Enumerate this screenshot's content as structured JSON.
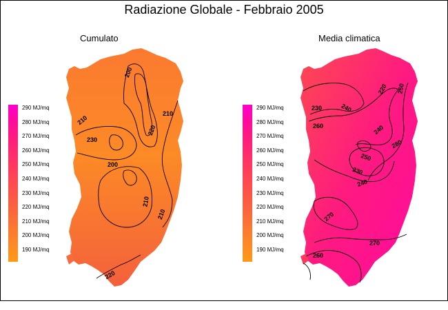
{
  "title": "Radiazione Globale - Febbraio 2005",
  "panels": {
    "left": {
      "label": "Cumulato"
    },
    "right": {
      "label": "Media climatica"
    }
  },
  "legend": {
    "items": [
      {
        "label": "290 MJ/mq",
        "color": "#ff00cc"
      },
      {
        "label": "280 MJ/mq",
        "color": "#ff0a9e"
      },
      {
        "label": "270 MJ/mq",
        "color": "#ff1a80"
      },
      {
        "label": "260 MJ/mq",
        "color": "#ff2a70"
      },
      {
        "label": "250 MJ/mq",
        "color": "#ff3a5e"
      },
      {
        "label": "240 MJ/mq",
        "color": "#fe4a50"
      },
      {
        "label": "230 MJ/mq",
        "color": "#fb5a44"
      },
      {
        "label": "220 MJ/mq",
        "color": "#fa6a3a"
      },
      {
        "label": "210 MJ/mq",
        "color": "#fb7a30"
      },
      {
        "label": "200 MJ/mq",
        "color": "#fc8a26"
      },
      {
        "label": "190 MJ/mq",
        "color": "#ff9a14"
      }
    ]
  },
  "contour_labels": {
    "left": [
      "200",
      "210",
      "220",
      "230",
      "210",
      "200",
      "210",
      "220",
      "210"
    ],
    "right": [
      "230",
      "240",
      "250",
      "260",
      "240",
      "250",
      "230",
      "240",
      "220",
      "280",
      "270",
      "270",
      "260"
    ]
  },
  "colors": {
    "left_low": "#ff9a14",
    "left_high": "#f4603c",
    "right_low": "#ff2a70",
    "right_high": "#ff0a9e"
  }
}
